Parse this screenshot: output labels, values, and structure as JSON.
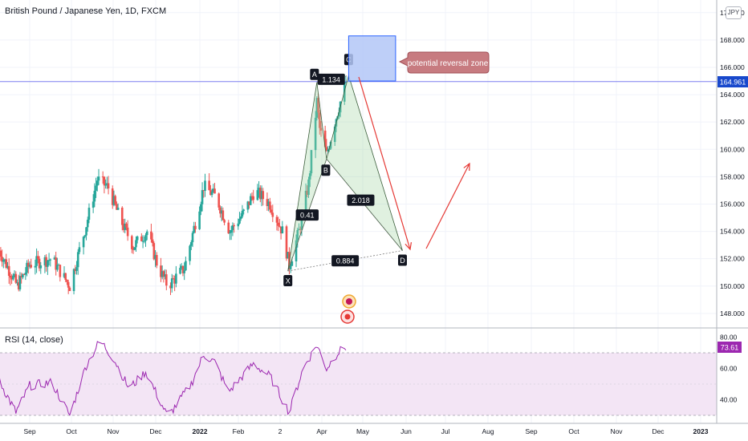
{
  "header": {
    "title": "British Pound / Japanese Yen, 1D, FXCM",
    "currency_badge": "JPY"
  },
  "price_label": "164.961",
  "rsi_value_label": "73.61",
  "rsi_indicator_label": "RSI (14, close)",
  "annotation": "potential reversal zone",
  "colors": {
    "up": "#26a69a",
    "down": "#ef5350",
    "rsi_line": "#9c27b0",
    "rsi_band": "#f3e5f5",
    "zone_fill": "#b3c7f7",
    "zone_border": "#2962ff",
    "callout_fill": "#c77b80",
    "arrow": "#e53935",
    "price_line": "#7b7ff0",
    "price_label_bg": "#1848cc",
    "rsi_label_bg": "#9c27b0"
  },
  "chart_data": [
    {
      "type": "candlestick",
      "title": "British Pound / Japanese Yen, 1D, FXCM",
      "y_axis_ticks": [
        "148.000",
        "150.000",
        "152.000",
        "154.000",
        "156.000",
        "158.000",
        "160.000",
        "162.000",
        "164.000",
        "166.000",
        "168.000",
        "170.000"
      ],
      "ylim": [
        147.5,
        170.5
      ],
      "x_axis_ticks": [
        "Sep",
        "Oct",
        "Nov",
        "Dec",
        "2022",
        "Feb",
        "2",
        "Apr",
        "May",
        "Jun",
        "Jul",
        "Aug",
        "Sep",
        "Oct",
        "Nov",
        "Dec",
        "2023"
      ],
      "last_price": 164.961,
      "approx_close_path": [
        {
          "date": "Aug 10",
          "value": 152.6
        },
        {
          "date": "Aug 23",
          "value": 150.0
        },
        {
          "date": "Sep 1",
          "value": 151.6
        },
        {
          "date": "Sep 17",
          "value": 152.0
        },
        {
          "date": "Sep 30",
          "value": 150.0
        },
        {
          "date": "Oct 12",
          "value": 154.5
        },
        {
          "date": "Oct 20",
          "value": 157.8
        },
        {
          "date": "Oct 28",
          "value": 157.2
        },
        {
          "date": "Nov 5",
          "value": 155.0
        },
        {
          "date": "Nov 15",
          "value": 152.9
        },
        {
          "date": "Nov 25",
          "value": 154.0
        },
        {
          "date": "Dec 3",
          "value": 151.4
        },
        {
          "date": "Dec 10",
          "value": 150.0
        },
        {
          "date": "Dec 22",
          "value": 151.3
        },
        {
          "date": "Jan 1",
          "value": 155.5
        },
        {
          "date": "Jan 5",
          "value": 157.3
        },
        {
          "date": "Jan 14",
          "value": 156.5
        },
        {
          "date": "Jan 24",
          "value": 154.0
        },
        {
          "date": "Feb 4",
          "value": 155.5
        },
        {
          "date": "Feb 11",
          "value": 157.0
        },
        {
          "date": "Feb 22",
          "value": 156.0
        },
        {
          "date": "Mar 3",
          "value": 154.0
        },
        {
          "date": "Mar 8",
          "value": 151.5
        },
        {
          "date": "Mar 15",
          "value": 154.0
        },
        {
          "date": "Mar 22",
          "value": 157.5
        },
        {
          "date": "Mar 28",
          "value": 163.5
        },
        {
          "date": "Mar 30",
          "value": 161.5
        },
        {
          "date": "Apr 4",
          "value": 159.6
        },
        {
          "date": "Apr 10",
          "value": 162.0
        },
        {
          "date": "Apr 18",
          "value": 164.96
        }
      ],
      "pattern": {
        "points": [
          {
            "label": "X",
            "date": "Mar 7",
            "value": 151.1
          },
          {
            "label": "A",
            "date": "Mar 28",
            "value": 164.9
          },
          {
            "label": "B",
            "date": "Apr 4",
            "value": 159.3
          },
          {
            "label": "C",
            "date": "Apr 20",
            "value": 165.4
          },
          {
            "label": "D",
            "date": "May 29",
            "value": 152.6
          }
        ],
        "ratios": [
          "0.41",
          "1.134",
          "2.018",
          "0.884"
        ]
      },
      "reversal_zone": {
        "date_from": "Apr 20",
        "date_to": "May 24",
        "value_from": 165.0,
        "value_to": 168.3,
        "label": "potential reversal zone"
      }
    },
    {
      "type": "line",
      "name": "RSI (14, close)",
      "y_axis_ticks": [
        "40.00",
        "60.00",
        "80.00"
      ],
      "ylim": [
        25,
        85
      ],
      "band": [
        30,
        70
      ],
      "last_value": 73.61,
      "approx_values": [
        {
          "date": "Aug 10",
          "value": 52
        },
        {
          "date": "Aug 22",
          "value": 32
        },
        {
          "date": "Sep 1",
          "value": 49
        },
        {
          "date": "Sep 17",
          "value": 51
        },
        {
          "date": "Sep 30",
          "value": 30
        },
        {
          "date": "Oct 12",
          "value": 62
        },
        {
          "date": "Oct 22",
          "value": 78
        },
        {
          "date": "Nov 1",
          "value": 66
        },
        {
          "date": "Nov 12",
          "value": 47
        },
        {
          "date": "Nov 24",
          "value": 58
        },
        {
          "date": "Dec 10",
          "value": 29
        },
        {
          "date": "Dec 27",
          "value": 50
        },
        {
          "date": "Jan 5",
          "value": 69
        },
        {
          "date": "Jan 13",
          "value": 64
        },
        {
          "date": "Jan 23",
          "value": 45
        },
        {
          "date": "Feb 10",
          "value": 63
        },
        {
          "date": "Feb 22",
          "value": 55
        },
        {
          "date": "Mar 8",
          "value": 32
        },
        {
          "date": "Mar 18",
          "value": 60
        },
        {
          "date": "Mar 28",
          "value": 75
        },
        {
          "date": "Apr 4",
          "value": 60
        },
        {
          "date": "Apr 12",
          "value": 70
        },
        {
          "date": "Apr 18",
          "value": 73.61
        }
      ]
    }
  ]
}
